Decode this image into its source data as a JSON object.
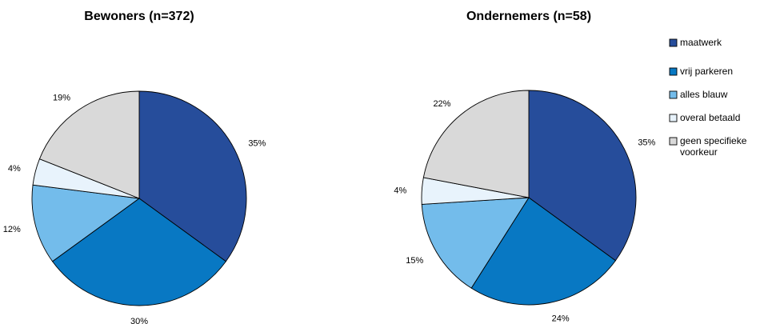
{
  "chart_data": [
    {
      "type": "pie",
      "title": "Bewoners (n=372)",
      "categories": [
        "maatwerk",
        "vrij parkeren",
        "alles blauw",
        "overal betaald",
        "geen specifieke voorkeur"
      ],
      "values": [
        35,
        30,
        12,
        4,
        19
      ],
      "labels": [
        "35%",
        "30%",
        "12%",
        "4%",
        "19%"
      ]
    },
    {
      "type": "pie",
      "title": "Ondernemers (n=58)",
      "categories": [
        "maatwerk",
        "vrij parkeren",
        "alles blauw",
        "overal betaald",
        "geen specifieke voorkeur"
      ],
      "values": [
        35,
        24,
        15,
        4,
        22
      ],
      "labels": [
        "35%",
        "24%",
        "15%",
        "4%",
        "22%"
      ]
    }
  ],
  "legend": {
    "position": "right",
    "items": [
      {
        "lines": [
          "maatwerk"
        ],
        "color": "#264D9B"
      },
      {
        "lines": [
          "vrij parkeren"
        ],
        "color": "#0878C3"
      },
      {
        "lines": [
          "alles blauw"
        ],
        "color": "#73BCEB"
      },
      {
        "lines": [
          "overal betaald"
        ],
        "color": "#E8F3FC"
      },
      {
        "lines": [
          "geen specifieke",
          "voorkeur"
        ],
        "color": "#D9D9D9"
      }
    ]
  }
}
